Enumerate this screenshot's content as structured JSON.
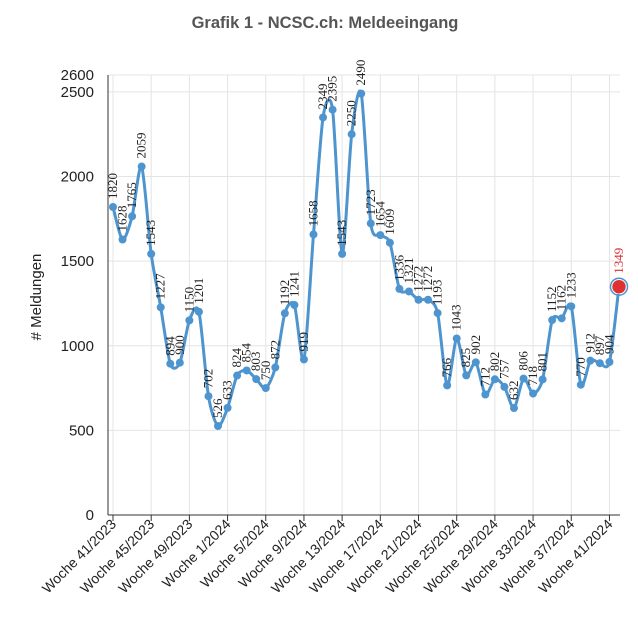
{
  "chart_data": {
    "type": "line",
    "title": "Grafik 1 - NCSC.ch: Meldeeingang",
    "xlabel": "",
    "ylabel": "# Meldungen",
    "ylim": [
      0,
      2600
    ],
    "yticks": [
      0,
      500,
      1000,
      1500,
      2000,
      2500,
      2600
    ],
    "grid": true,
    "series_color": "#4e95cf",
    "highlight_color": "#e03131",
    "x_tick_labels": [
      {
        "label": "Woche 41/2023",
        "index": 0
      },
      {
        "label": "Woche 45/2023",
        "index": 4
      },
      {
        "label": "Woche 49/2023",
        "index": 8
      },
      {
        "label": "Woche 1/2024",
        "index": 12
      },
      {
        "label": "Woche 5/2024",
        "index": 16
      },
      {
        "label": "Woche 9/2024",
        "index": 20
      },
      {
        "label": "Woche 13/2024",
        "index": 24
      },
      {
        "label": "Woche 17/2024",
        "index": 28
      },
      {
        "label": "Woche 21/2024",
        "index": 32
      },
      {
        "label": "Woche 25/2024",
        "index": 36
      },
      {
        "label": "Woche 29/2024",
        "index": 40
      },
      {
        "label": "Woche 33/2024",
        "index": 44
      },
      {
        "label": "Woche 37/2024",
        "index": 48
      },
      {
        "label": "Woche 41/2024",
        "index": 52
      }
    ],
    "values": [
      1820,
      1628,
      1765,
      2059,
      1543,
      1227,
      894,
      900,
      1150,
      1201,
      702,
      526,
      633,
      824,
      854,
      803,
      750,
      872,
      1192,
      1241,
      919,
      1658,
      2349,
      2395,
      1543,
      2250,
      2490,
      1723,
      1654,
      1609,
      1336,
      1321,
      1272,
      1272,
      1193,
      766,
      1043,
      825,
      902,
      712,
      802,
      757,
      632,
      806,
      718,
      801,
      1152,
      1162,
      1233,
      770,
      912,
      897,
      904,
      1349
    ],
    "highlight_index": 53
  }
}
